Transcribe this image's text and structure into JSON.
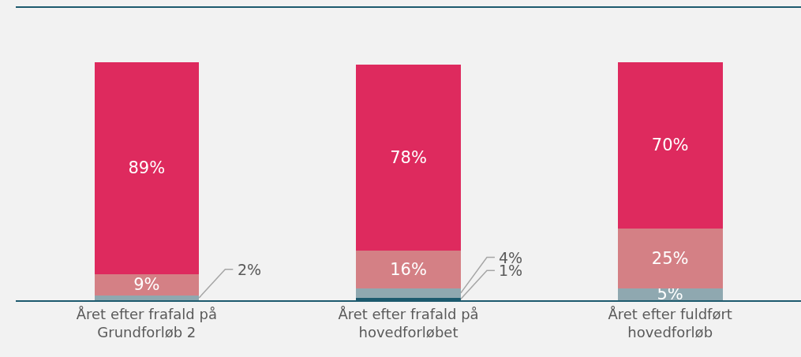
{
  "chart_data": {
    "type": "bar",
    "stacked": true,
    "grid": false,
    "categories": [
      "Året efter frafald på Grundforløb 2",
      "Året efter frafald på hovedforløbet",
      "Året efter fuldført hovedforløb"
    ],
    "series": [
      {
        "color": "#1d5a6e",
        "values": [
          null,
          1,
          null
        ],
        "value_labels": [
          null,
          "1%",
          null
        ]
      },
      {
        "color": "#8fa8b0",
        "values": [
          2,
          4,
          5
        ],
        "value_labels": [
          "2%",
          "4%",
          "5%"
        ]
      },
      {
        "color": "#d48085",
        "values": [
          9,
          16,
          25
        ],
        "value_labels": [
          "9%",
          "16%",
          "25%"
        ]
      },
      {
        "color": "#de2a5e",
        "values": [
          89,
          78,
          70
        ],
        "value_labels": [
          "89%",
          "78%",
          "70%"
        ]
      }
    ]
  }
}
